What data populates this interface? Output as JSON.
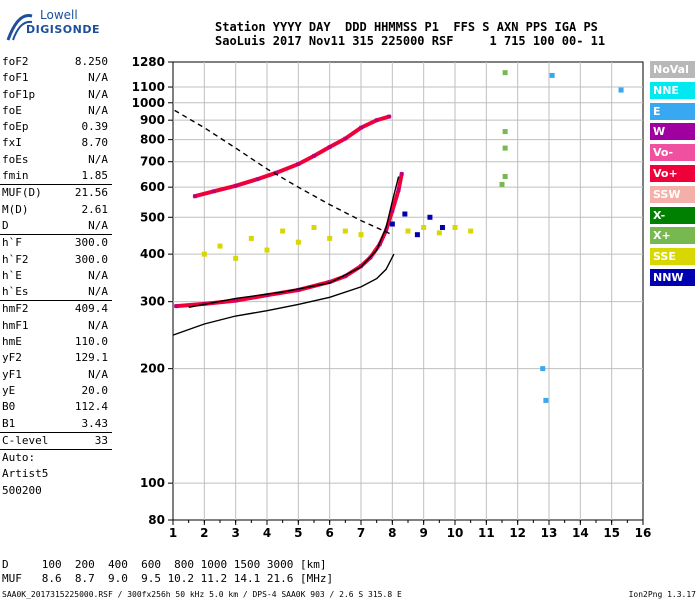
{
  "logo": {
    "line1": "Lowell",
    "line2": "DIGISONDE"
  },
  "header": {
    "line1": "Station YYYY DAY  DDD HHMMSS P1  FFS S AXN PPS IGA PS",
    "line2": "SaoLuis 2017 Nov11 315 225000 RSF     1 715 100 00- 11"
  },
  "params_group1": [
    {
      "label": "foF2",
      "value": "8.250"
    },
    {
      "label": "foF1",
      "value": "N/A"
    },
    {
      "label": "foF1p",
      "value": "N/A"
    },
    {
      "label": "foE",
      "value": "N/A"
    },
    {
      "label": "foEp",
      "value": "0.39"
    },
    {
      "label": "fxI",
      "value": "8.70"
    },
    {
      "label": "foEs",
      "value": "N/A"
    },
    {
      "label": "fmin",
      "value": "1.85"
    }
  ],
  "params_group2": [
    {
      "label": "MUF(D)",
      "value": "21.56"
    },
    {
      "label": "M(D)",
      "value": "2.61"
    },
    {
      "label": "D",
      "value": "N/A"
    }
  ],
  "params_group3": [
    {
      "label": "h`F",
      "value": "300.0"
    },
    {
      "label": "h`F2",
      "value": "300.0"
    },
    {
      "label": "h`E",
      "value": "N/A"
    },
    {
      "label": "h`Es",
      "value": "N/A"
    }
  ],
  "params_group4": [
    {
      "label": "hmF2",
      "value": "409.4"
    },
    {
      "label": "hmF1",
      "value": "N/A"
    },
    {
      "label": "hmE",
      "value": "110.0"
    },
    {
      "label": "yF2",
      "value": "129.1"
    },
    {
      "label": "yF1",
      "value": "N/A"
    },
    {
      "label": "yE",
      "value": "20.0"
    },
    {
      "label": "B0",
      "value": "112.4"
    },
    {
      "label": "B1",
      "value": "3.43"
    }
  ],
  "params_group5": [
    {
      "label": "C-level",
      "value": "33"
    }
  ],
  "autoscaling": {
    "line1": "Auto:",
    "line2": "Artist5",
    "line3": "500200"
  },
  "footer": {
    "d_row": "D     100  200  400  600  800 1000 1500 3000 [km]",
    "muf_row": "MUF   8.6  8.7  9.0  9.5 10.2 11.2 14.1 21.6 [MHz]",
    "file_line": "SAA0K_2017315225000.RSF / 300fx256h 50 kHz 5.0 km / DPS-4 SAA0K 903 / 2.6 S 315.8 E",
    "version": "Ion2Png 1.3.17"
  },
  "legend": [
    {
      "label": "NoVal",
      "color": "#b8b8b8"
    },
    {
      "label": "NNE",
      "color": "#00e8f0"
    },
    {
      "label": "E",
      "color": "#38a8f0"
    },
    {
      "label": "W",
      "color": "#a000a0"
    },
    {
      "label": "Vo-",
      "color": "#f050a0"
    },
    {
      "label": "Vo+",
      "color": "#f0003a"
    },
    {
      "label": "SSW",
      "color": "#f4b0a8"
    },
    {
      "label": "X-",
      "color": "#008000"
    },
    {
      "label": "X+",
      "color": "#78b850"
    },
    {
      "label": "SSE",
      "color": "#d8d800"
    },
    {
      "label": "NNW",
      "color": "#0000b0"
    }
  ],
  "chart_data": {
    "type": "scatter",
    "xlabel": "",
    "ylabel": "",
    "xlim": [
      1,
      16
    ],
    "ylim": [
      80,
      1280
    ],
    "y_scale": "log",
    "x_ticks": [
      "1",
      "2",
      "3",
      "4",
      "5",
      "6",
      "7",
      "8",
      "9",
      "10",
      "11",
      "12",
      "13",
      "14",
      "15",
      "16"
    ],
    "y_ticks": [
      "80",
      "100",
      "200",
      "300",
      "400",
      "500",
      "600",
      "700",
      "800",
      "900",
      "1000",
      "1100",
      "1280"
    ],
    "grid": true,
    "series": [
      {
        "color": "#f0003a",
        "points": [
          [
            1.1,
            292
          ],
          [
            2.0,
            296
          ],
          [
            3.0,
            302
          ],
          [
            4.0,
            312
          ],
          [
            5.0,
            322
          ],
          [
            6.0,
            338
          ],
          [
            6.5,
            350
          ],
          [
            7.0,
            372
          ],
          [
            7.3,
            392
          ],
          [
            7.6,
            425
          ],
          [
            7.8,
            462
          ],
          [
            8.0,
            520
          ],
          [
            8.2,
            590
          ],
          [
            8.3,
            650
          ]
        ]
      },
      {
        "color": "#f0003a",
        "points": [
          [
            1.7,
            568
          ],
          [
            2.3,
            585
          ],
          [
            3.0,
            605
          ],
          [
            3.7,
            630
          ],
          [
            4.3,
            655
          ],
          [
            5.0,
            690
          ],
          [
            5.5,
            725
          ],
          [
            6.0,
            765
          ],
          [
            6.5,
            805
          ],
          [
            7.0,
            860
          ],
          [
            7.5,
            900
          ],
          [
            7.9,
            920
          ]
        ]
      },
      {
        "color": "#000000",
        "points": [
          [
            1.0,
            245
          ],
          [
            2.0,
            262
          ],
          [
            3.0,
            275
          ],
          [
            4.0,
            284
          ],
          [
            5.0,
            295
          ],
          [
            6.0,
            308
          ],
          [
            7.0,
            328
          ],
          [
            7.5,
            345
          ],
          [
            7.8,
            365
          ],
          [
            8.05,
            400
          ]
        ]
      },
      {
        "color": "#000000",
        "points": [
          [
            1.5,
            290
          ],
          [
            3.0,
            306
          ],
          [
            4.5,
            318
          ],
          [
            6.0,
            336
          ],
          [
            7.0,
            370
          ],
          [
            7.5,
            410
          ],
          [
            7.8,
            470
          ],
          [
            8.0,
            550
          ],
          [
            8.2,
            640
          ]
        ]
      },
      {
        "color": "#000000",
        "points": [
          [
            1.05,
            955
          ],
          [
            2.0,
            860
          ],
          [
            3.0,
            760
          ],
          [
            4.0,
            670
          ],
          [
            5.0,
            600
          ],
          [
            6.0,
            540
          ],
          [
            7.0,
            490
          ],
          [
            8.0,
            450
          ]
        ]
      },
      {
        "color": "#d8d800",
        "points": [
          [
            2.0,
            400
          ],
          [
            2.5,
            420
          ],
          [
            3.0,
            390
          ],
          [
            3.5,
            440
          ],
          [
            4.0,
            410
          ],
          [
            4.5,
            460
          ],
          [
            5.0,
            430
          ],
          [
            5.5,
            470
          ],
          [
            6.0,
            440
          ],
          [
            6.5,
            460
          ],
          [
            7.0,
            450
          ],
          [
            8.5,
            460
          ],
          [
            9.0,
            470
          ],
          [
            9.5,
            455
          ],
          [
            10.0,
            470
          ],
          [
            10.5,
            460
          ]
        ]
      },
      {
        "color": "#0000b0",
        "points": [
          [
            8.0,
            480
          ],
          [
            8.4,
            510
          ],
          [
            8.8,
            450
          ],
          [
            9.2,
            500
          ],
          [
            9.6,
            470
          ]
        ]
      },
      {
        "color": "#78b850",
        "points": [
          [
            11.6,
            1200
          ],
          [
            11.6,
            840
          ],
          [
            11.6,
            760
          ],
          [
            11.6,
            640
          ],
          [
            11.5,
            610
          ]
        ]
      },
      {
        "color": "#38a8f0",
        "points": [
          [
            12.8,
            200
          ],
          [
            12.9,
            165
          ],
          [
            13.1,
            1180
          ],
          [
            15.3,
            1080
          ]
        ]
      }
    ]
  }
}
